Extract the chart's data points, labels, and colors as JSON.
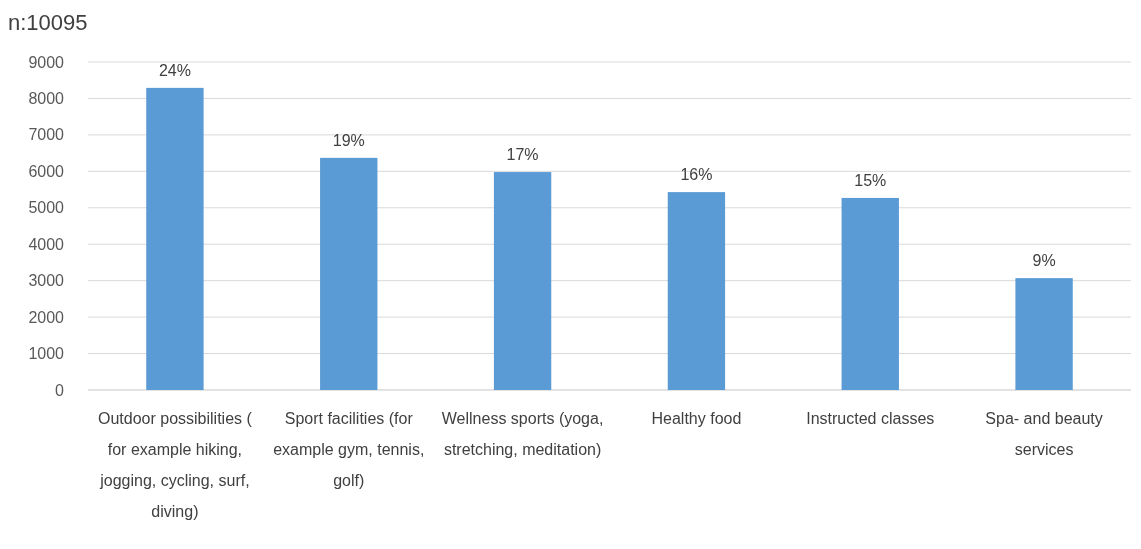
{
  "chart_data": {
    "type": "bar",
    "title": "n:10095",
    "categories": [
      "Outdoor possibilities ( for example hiking, jogging, cycling, surf, diving)",
      "Sport facilities (for example gym, tennis, golf)",
      "Wellness sports (yoga, stretching, meditation)",
      "Healthy food",
      "Instructed classes",
      "Spa- and beauty services"
    ],
    "values": [
      8290,
      6370,
      5980,
      5430,
      5270,
      3070
    ],
    "annotations": [
      {
        "text": "24%",
        "x": "Outdoor possibilities ( for example hiking, jogging, cycling, surf, diving)",
        "y": 8290
      },
      {
        "text": "19%",
        "x": "Sport facilities (for example gym, tennis, golf)",
        "y": 6370
      },
      {
        "text": "17%",
        "x": "Wellness sports (yoga, stretching, meditation)",
        "y": 5980
      },
      {
        "text": "16%",
        "x": "Healthy food",
        "y": 5430
      },
      {
        "text": "15%",
        "x": "Instructed classes",
        "y": 5270
      },
      {
        "text": "9%",
        "x": "Spa- and beauty services",
        "y": 3070
      }
    ],
    "color": "#5b9bd5",
    "ylim": [
      0,
      9000
    ],
    "yticks": [
      0,
      1000,
      2000,
      3000,
      4000,
      5000,
      6000,
      7000,
      8000,
      9000
    ],
    "grid": "y"
  }
}
